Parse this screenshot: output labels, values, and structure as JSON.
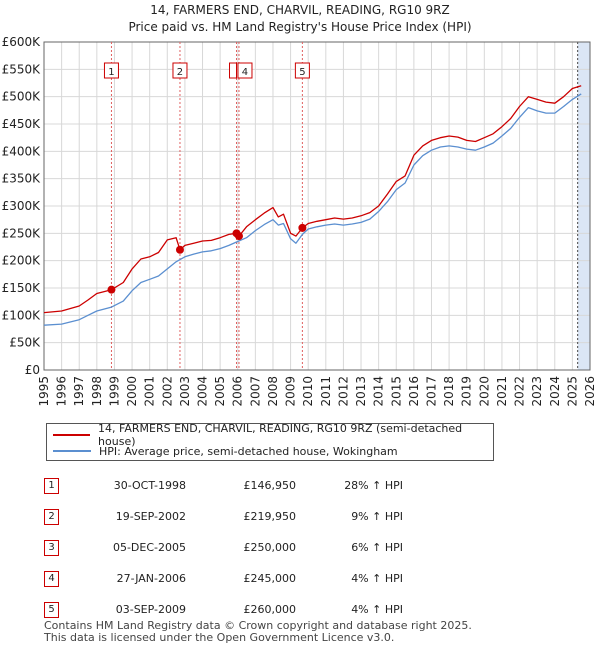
{
  "title_line1": "14, FARMERS END, CHARVIL, READING, RG10 9RZ",
  "title_line2": "Price paid vs. HM Land Registry's House Price Index (HPI)",
  "colors": {
    "price_paid": "#cc0000",
    "hpi": "#5b8fd0",
    "shade": "#dbe6f5",
    "grid": "#d8d8d8"
  },
  "legend": {
    "price_paid_label": "14, FARMERS END, CHARVIL, READING, RG10 9RZ (semi-detached house)",
    "hpi_label": "HPI: Average price, semi-detached house, Wokingham"
  },
  "sales": [
    {
      "num": "1",
      "date": "30-OCT-1998",
      "price": "£146,950",
      "hpi": "28% ↑ HPI"
    },
    {
      "num": "2",
      "date": "19-SEP-2002",
      "price": "£219,950",
      "hpi": "9% ↑ HPI"
    },
    {
      "num": "3",
      "date": "05-DEC-2005",
      "price": "£250,000",
      "hpi": "6% ↑ HPI"
    },
    {
      "num": "4",
      "date": "27-JAN-2006",
      "price": "£245,000",
      "hpi": "4% ↑ HPI"
    },
    {
      "num": "5",
      "date": "03-SEP-2009",
      "price": "£260,000",
      "hpi": "4% ↑ HPI"
    }
  ],
  "footer_line1": "Contains HM Land Registry data © Crown copyright and database right 2025.",
  "footer_line2": "This data is licensed under the Open Government Licence v3.0.",
  "chart_data": {
    "type": "line",
    "title": "14, FARMERS END, CHARVIL, READING, RG10 9RZ — Price paid vs. HM Land Registry's House Price Index (HPI)",
    "xlabel": "",
    "ylabel": "",
    "xlim": [
      1995,
      2026
    ],
    "ylim": [
      0,
      600000
    ],
    "x_ticks": [
      1995,
      1996,
      1997,
      1998,
      1999,
      2000,
      2001,
      2002,
      2003,
      2004,
      2005,
      2006,
      2007,
      2008,
      2009,
      2010,
      2011,
      2012,
      2013,
      2014,
      2015,
      2016,
      2017,
      2018,
      2019,
      2020,
      2021,
      2022,
      2023,
      2024,
      2025,
      2026
    ],
    "y_ticks": [
      0,
      50000,
      100000,
      150000,
      200000,
      250000,
      300000,
      350000,
      400000,
      450000,
      500000,
      550000,
      600000
    ],
    "y_tick_labels": [
      "£0",
      "£50K",
      "£100K",
      "£150K",
      "£200K",
      "£250K",
      "£300K",
      "£350K",
      "£400K",
      "£450K",
      "£500K",
      "£550K",
      "£600K"
    ],
    "grid": true,
    "forecast_shade_start": 2025.3,
    "sale_markers": [
      {
        "label": "1",
        "x": 1998.83,
        "y": 146950
      },
      {
        "label": "2",
        "x": 2002.72,
        "y": 219950
      },
      {
        "label": "3",
        "x": 2005.93,
        "y": 250000
      },
      {
        "label": "4",
        "x": 2006.07,
        "y": 245000
      },
      {
        "label": "5",
        "x": 2009.67,
        "y": 260000
      }
    ],
    "series": [
      {
        "name": "14, FARMERS END, CHARVIL, READING, RG10 9RZ (semi-detached house)",
        "x": [
          1995,
          1996,
          1997,
          1997.5,
          1998,
          1998.83,
          1999.5,
          2000,
          2000.5,
          2001,
          2001.5,
          2002,
          2002.5,
          2002.72,
          2003,
          2003.5,
          2004,
          2004.5,
          2005,
          2005.5,
          2005.93,
          2006.07,
          2006.5,
          2007,
          2007.5,
          2008,
          2008.3,
          2008.6,
          2009,
          2009.3,
          2009.67,
          2010,
          2010.5,
          2011,
          2011.5,
          2012,
          2012.5,
          2013,
          2013.5,
          2014,
          2014.5,
          2015,
          2015.5,
          2016,
          2016.5,
          2017,
          2017.5,
          2018,
          2018.5,
          2019,
          2019.5,
          2020,
          2020.5,
          2021,
          2021.5,
          2022,
          2022.5,
          2023,
          2023.5,
          2024,
          2024.5,
          2025,
          2025.5
        ],
        "y": [
          105000,
          108000,
          117000,
          128000,
          140000,
          146950,
          160000,
          185000,
          203000,
          207000,
          215000,
          238000,
          242000,
          219950,
          228000,
          232000,
          236000,
          237000,
          242000,
          248000,
          250000,
          245000,
          262000,
          275000,
          287000,
          297000,
          280000,
          285000,
          250000,
          245000,
          260000,
          268000,
          272000,
          275000,
          278000,
          276000,
          278000,
          282000,
          288000,
          300000,
          322000,
          345000,
          355000,
          393000,
          410000,
          420000,
          425000,
          428000,
          426000,
          420000,
          418000,
          425000,
          432000,
          445000,
          460000,
          482000,
          500000,
          495000,
          490000,
          488000,
          500000,
          515000,
          520000
        ]
      },
      {
        "name": "HPI: Average price, semi-detached house, Wokingham",
        "x": [
          1995,
          1996,
          1997,
          1997.5,
          1998,
          1998.83,
          1999.5,
          2000,
          2000.5,
          2001,
          2001.5,
          2002,
          2002.5,
          2003,
          2003.5,
          2004,
          2004.5,
          2005,
          2005.5,
          2006,
          2006.5,
          2007,
          2007.5,
          2008,
          2008.3,
          2008.6,
          2009,
          2009.3,
          2009.67,
          2010,
          2010.5,
          2011,
          2011.5,
          2012,
          2012.5,
          2013,
          2013.5,
          2014,
          2014.5,
          2015,
          2015.5,
          2016,
          2016.5,
          2017,
          2017.5,
          2018,
          2018.5,
          2019,
          2019.5,
          2020,
          2020.5,
          2021,
          2021.5,
          2022,
          2022.5,
          2023,
          2023.5,
          2024,
          2024.5,
          2025,
          2025.5
        ],
        "y": [
          82000,
          84000,
          92000,
          100000,
          108000,
          115000,
          126000,
          145000,
          160000,
          166000,
          172000,
          185000,
          198000,
          207000,
          212000,
          216000,
          218000,
          222000,
          228000,
          235000,
          242000,
          255000,
          266000,
          275000,
          265000,
          268000,
          240000,
          232000,
          248000,
          258000,
          262000,
          265000,
          267000,
          265000,
          267000,
          270000,
          276000,
          290000,
          308000,
          330000,
          342000,
          375000,
          392000,
          402000,
          408000,
          410000,
          408000,
          404000,
          402000,
          408000,
          415000,
          428000,
          442000,
          462000,
          480000,
          474000,
          470000,
          470000,
          482000,
          495000,
          505000
        ]
      }
    ]
  }
}
